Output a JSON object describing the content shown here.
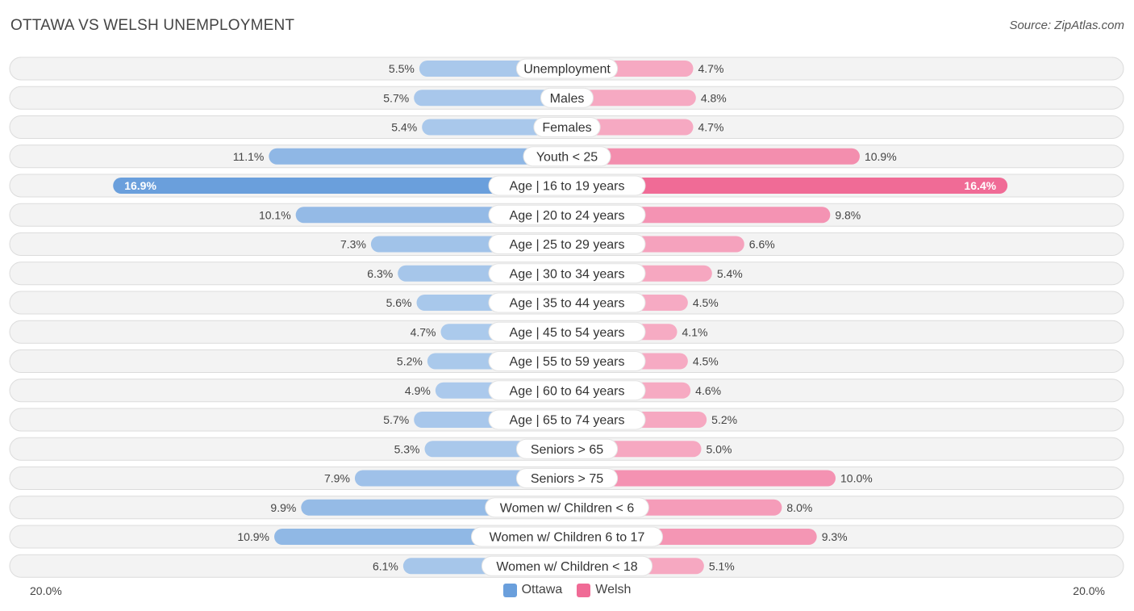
{
  "title": "OTTAWA VS WELSH UNEMPLOYMENT",
  "source": "Source: ZipAtlas.com",
  "axis": {
    "left_label": "20.0%",
    "right_label": "20.0%"
  },
  "legend": [
    {
      "name": "Ottawa",
      "color": "#6a9fdc"
    },
    {
      "name": "Welsh",
      "color": "#f06b96"
    }
  ],
  "chart_data": {
    "type": "bar",
    "orientation": "diverging-horizontal",
    "title": "OTTAWA VS WELSH UNEMPLOYMENT",
    "xlim": [
      -20,
      20
    ],
    "categories": [
      "Unemployment",
      "Males",
      "Females",
      "Youth < 25",
      "Age | 16 to 19 years",
      "Age | 20 to 24 years",
      "Age | 25 to 29 years",
      "Age | 30 to 34 years",
      "Age | 35 to 44 years",
      "Age | 45 to 54 years",
      "Age | 55 to 59 years",
      "Age | 60 to 64 years",
      "Age | 65 to 74 years",
      "Seniors > 65",
      "Seniors > 75",
      "Women w/ Children < 6",
      "Women w/ Children 6 to 17",
      "Women w/ Children < 18"
    ],
    "series": [
      {
        "name": "Ottawa",
        "values": [
          5.5,
          5.7,
          5.4,
          11.1,
          16.9,
          10.1,
          7.3,
          6.3,
          5.6,
          4.7,
          5.2,
          4.9,
          5.7,
          5.3,
          7.9,
          9.9,
          10.9,
          6.1
        ]
      },
      {
        "name": "Welsh",
        "values": [
          4.7,
          4.8,
          4.7,
          10.9,
          16.4,
          9.8,
          6.6,
          5.4,
          4.5,
          4.1,
          4.5,
          4.6,
          5.2,
          5.0,
          10.0,
          8.0,
          9.3,
          5.1
        ]
      }
    ],
    "value_labels": {
      "Ottawa": [
        "5.5%",
        "5.7%",
        "5.4%",
        "11.1%",
        "16.9%",
        "10.1%",
        "7.3%",
        "6.3%",
        "5.6%",
        "4.7%",
        "5.2%",
        "4.9%",
        "5.7%",
        "5.3%",
        "7.9%",
        "9.9%",
        "10.9%",
        "6.1%"
      ],
      "Welsh": [
        "4.7%",
        "4.8%",
        "4.7%",
        "10.9%",
        "16.4%",
        "9.8%",
        "6.6%",
        "5.4%",
        "4.5%",
        "4.1%",
        "4.5%",
        "4.6%",
        "5.2%",
        "5.0%",
        "10.0%",
        "8.0%",
        "9.3%",
        "5.1%"
      ]
    }
  }
}
